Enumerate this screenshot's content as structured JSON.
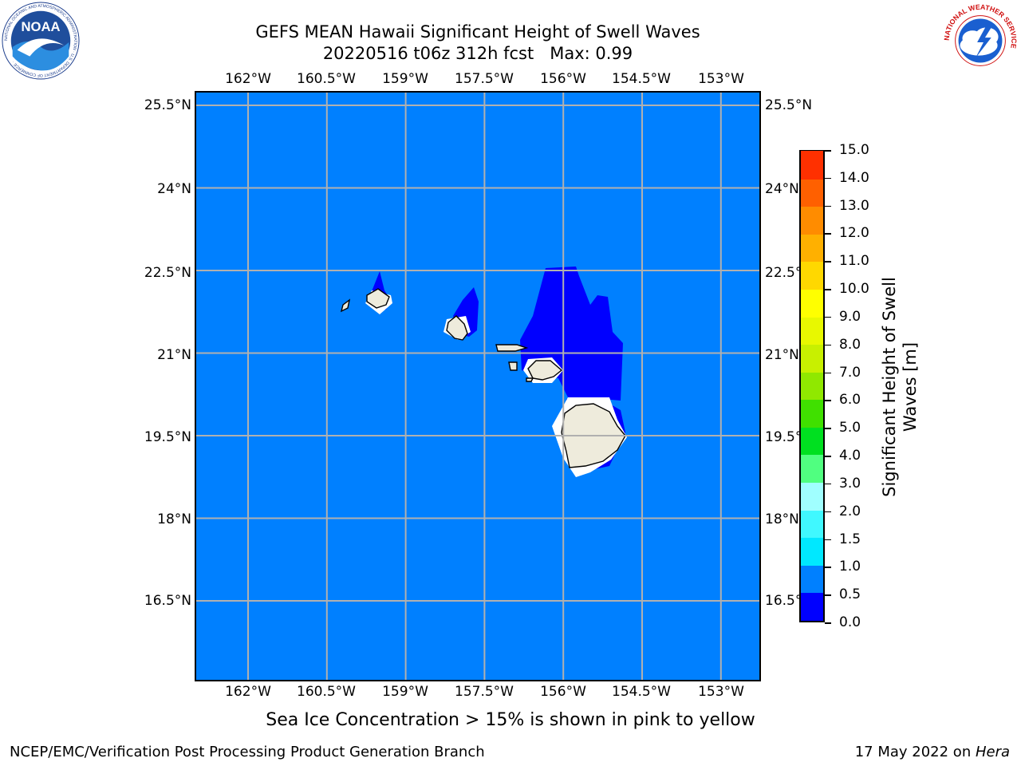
{
  "header": {
    "title_line1": "GEFS MEAN Hawaii Significant Height of Swell Waves",
    "title_line2": "20220516 t06z 312h fcst   Max: 0.99"
  },
  "map": {
    "lon_labels": [
      "162°W",
      "160.5°W",
      "159°W",
      "157.5°W",
      "156°W",
      "154.5°W",
      "153°W"
    ],
    "lat_labels": [
      "25.5°N",
      "24°N",
      "22.5°N",
      "21°N",
      "19.5°N",
      "18°N",
      "16.5°N"
    ],
    "lon_values": [
      -162,
      -160.5,
      -159,
      -157.5,
      -156,
      -154.5,
      -153
    ],
    "lat_values": [
      25.5,
      24,
      22.5,
      21,
      19.5,
      18,
      16.5
    ],
    "ocean_color": "#0080ff",
    "low_swell_color": "#0000ff",
    "land_color": "#eeebdc",
    "grid_color": "#b0b0b0"
  },
  "colorbar": {
    "label": "Significant Height of Swell Waves [m]",
    "ticks": [
      "0.0",
      "0.5",
      "1.0",
      "1.5",
      "2.0",
      "3.0",
      "4.0",
      "5.0",
      "6.0",
      "7.0",
      "8.0",
      "9.0",
      "10.0",
      "11.0",
      "12.0",
      "13.0",
      "14.0",
      "15.0"
    ],
    "colors": [
      "#0000ff",
      "#0080ff",
      "#00e8ff",
      "#40f8ff",
      "#a0ffff",
      "#50ff80",
      "#00e020",
      "#40e000",
      "#90e800",
      "#c8f000",
      "#e8f800",
      "#ffff00",
      "#ffd800",
      "#ffb000",
      "#ff8c00",
      "#ff6000",
      "#ff3000",
      "#ff0000"
    ]
  },
  "footer": {
    "note": "Sea Ice Concentration > 15% is shown in pink to yellow",
    "left": "NCEP/EMC/Verification Post Processing Product Generation Branch",
    "date": "17 May 2022 on ",
    "machine": "Hera"
  },
  "logos": {
    "noaa_text": "NOAA",
    "noaa_ring": "NATIONAL OCEANIC AND ATMOSPHERIC ADMINISTRATION · U.S. DEPARTMENT OF COMMERCE ·",
    "nws_ring": "NATIONAL WEATHER SERVICE"
  }
}
